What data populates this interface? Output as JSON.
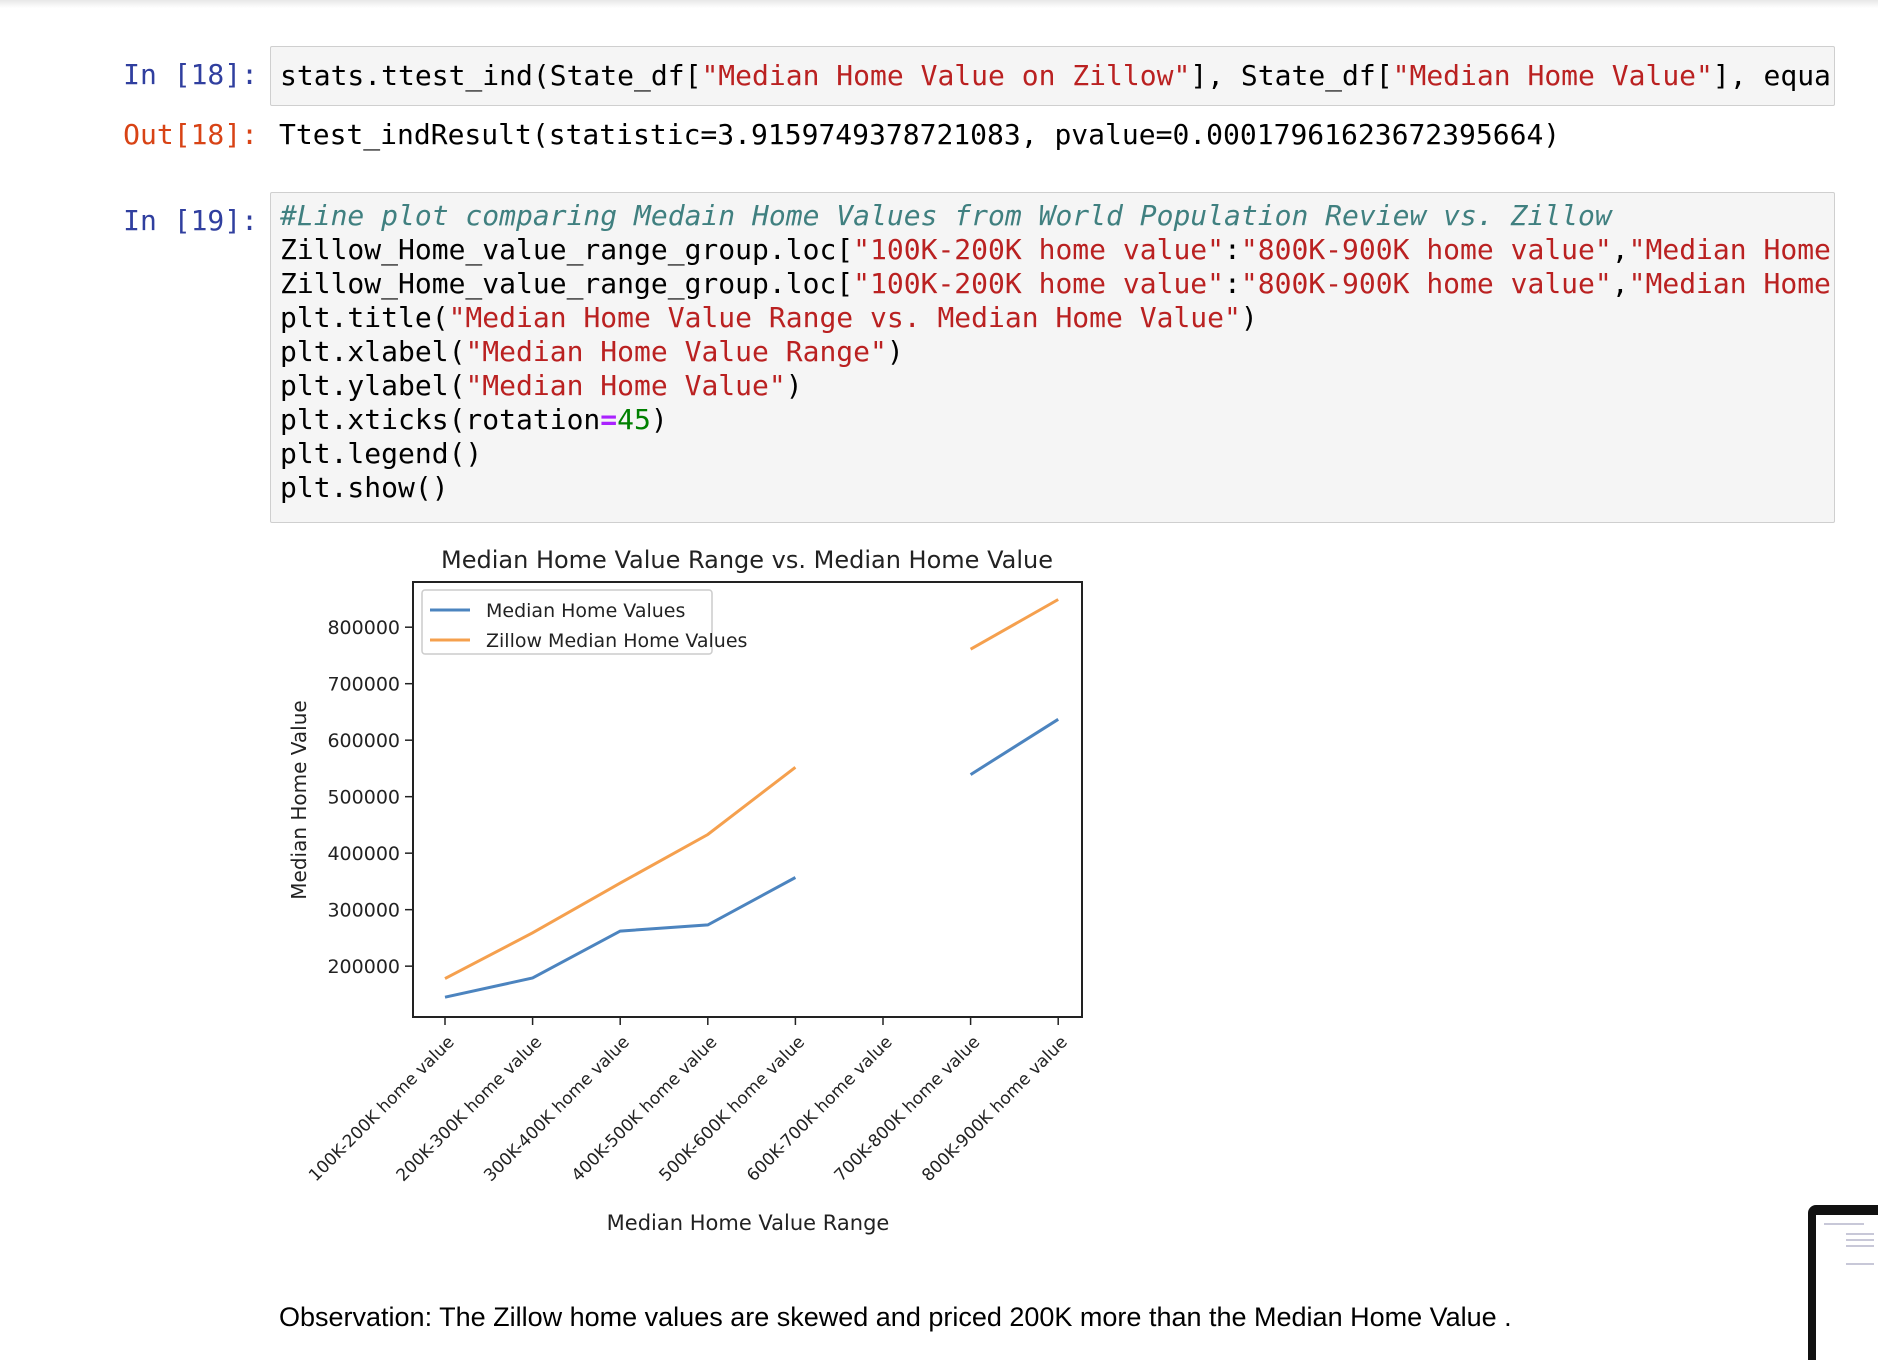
{
  "cells": {
    "c18": {
      "in_prompt": "In [18]:",
      "code": "stats.ttest_ind(State_df[\"Median Home Value on Zillow\"], State_df[\"Median Home Value\"], equa",
      "out_prompt": "Out[18]:",
      "output": "Ttest_indResult(statistic=3.9159749378721083, pvalue=0.00017961623672395664)"
    },
    "c19": {
      "in_prompt": "In [19]:",
      "code_lines": [
        "#Line plot comparing Medain Home Values from World Population Review vs. Zillow",
        "Zillow_Home_value_range_group.loc[\"100K-200K home value\":\"800K-900K home value\",\"Median Home",
        "Zillow_Home_value_range_group.loc[\"100K-200K home value\":\"800K-900K home value\",\"Median Home",
        "plt.title(\"Median Home Value Range vs. Median Home Value\")",
        "plt.xlabel(\"Median Home Value Range\")",
        "plt.ylabel(\"Median Home Value\")",
        "plt.xticks(rotation=45)",
        "plt.legend()",
        "plt.show()"
      ]
    }
  },
  "chart_data": {
    "type": "line",
    "title": "Median Home Value Range vs. Median Home Value",
    "xlabel": "Median Home Value Range",
    "ylabel": "Median Home Value",
    "categories": [
      "100K-200K home value",
      "200K-300K home value",
      "300K-400K home value",
      "400K-500K home value",
      "500K-600K home value",
      "600K-700K home value",
      "700K-800K home value",
      "800K-900K home value"
    ],
    "series": [
      {
        "name": "Median Home Values",
        "color": "#4c84bf",
        "values": [
          145000,
          179000,
          262000,
          273000,
          357000,
          null,
          539000,
          637000
        ]
      },
      {
        "name": "Zillow Median Home Values",
        "color": "#f5a04e",
        "values": [
          178000,
          259000,
          347000,
          433000,
          552000,
          null,
          761000,
          849000
        ]
      }
    ],
    "yticks": [
      200000,
      300000,
      400000,
      500000,
      600000,
      700000,
      800000
    ],
    "ylim": [
      110000,
      880000
    ],
    "legend": "top-left",
    "grid": false
  },
  "observation": "Observation: The Zillow home values are skewed and priced 200K more than the Median Home Value ."
}
